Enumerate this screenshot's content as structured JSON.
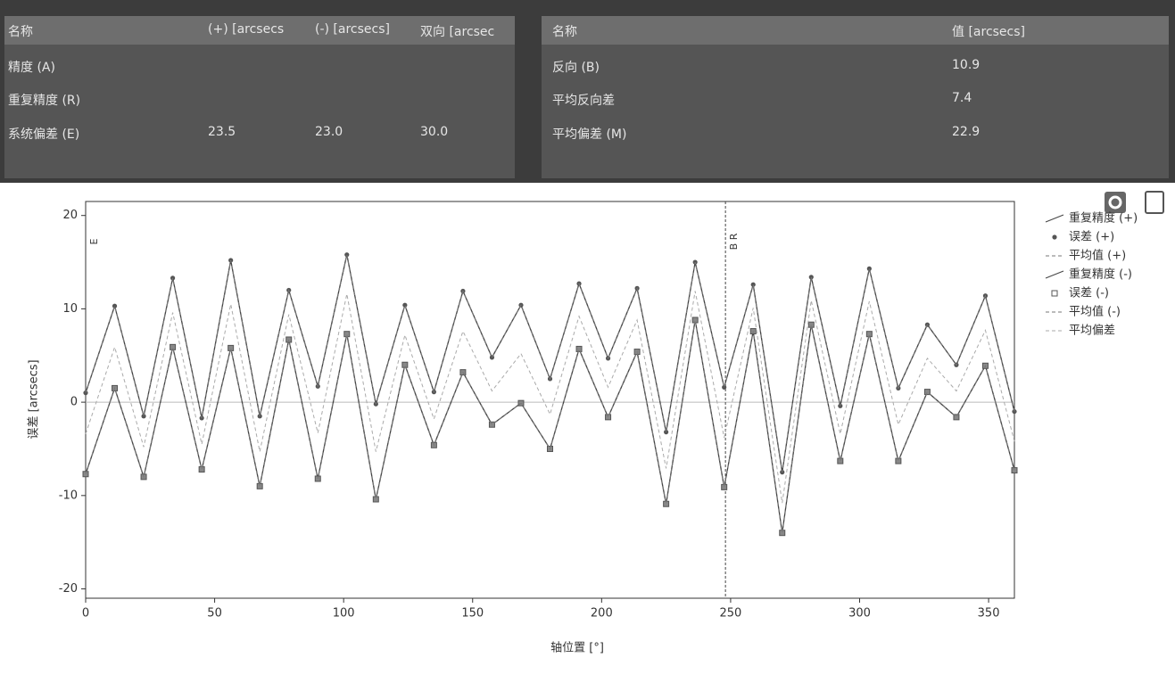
{
  "left_table": {
    "header": [
      "名称",
      "(+) [arcsecs",
      "(-) [arcsecs]",
      "双向 [arcsec"
    ],
    "rows": [
      {
        "name": "精度 (A)"
      },
      {
        "name": "重复精度 (R)"
      },
      {
        "name": "系统偏差 (E)",
        "plus": "23.5",
        "minus": "23.0",
        "bidir": "30.0"
      }
    ]
  },
  "right_table": {
    "header": [
      "名称",
      "值 [arcsecs]"
    ],
    "rows": [
      [
        "反向 (B)",
        "10.9"
      ],
      [
        "平均反向差",
        "7.4"
      ],
      [
        "平均偏差 (M)",
        "22.9"
      ]
    ]
  },
  "chart_data": {
    "type": "line",
    "x_label": "轴位置 [°]",
    "y_label": "误差 [arcsecs]",
    "x": [
      0,
      11.25,
      22.5,
      33.75,
      45,
      56.25,
      67.5,
      78.75,
      90,
      101.25,
      112.5,
      123.75,
      135,
      146.25,
      157.5,
      168.75,
      180,
      191.25,
      202.5,
      213.75,
      225,
      236.25,
      247.5,
      258.75,
      270,
      281.25,
      292.5,
      303.75,
      315,
      326.25,
      337.5,
      348.75,
      360
    ],
    "xlim": [
      0,
      360
    ],
    "xticks": [
      0,
      50,
      100,
      150,
      200,
      250,
      300,
      350
    ],
    "ylim": [
      -21,
      21.5
    ],
    "yticks": [
      -20,
      -10,
      0,
      10,
      20
    ],
    "zero_line": true,
    "annotations": [
      {
        "x": 248,
        "label": "B R"
      },
      {
        "x": 0,
        "label": "E"
      }
    ],
    "series": [
      {
        "name": "重复精度 (+)",
        "color": "#444444",
        "style": "line",
        "values": [
          1.0,
          10.3,
          -1.5,
          13.3,
          -1.7,
          15.2,
          -1.5,
          12.0,
          1.7,
          15.8,
          -0.2,
          10.4,
          1.1,
          11.9,
          4.8,
          10.4,
          2.5,
          12.7,
          4.7,
          12.2,
          -3.2,
          15.0,
          1.6,
          12.6,
          -7.5,
          13.4,
          -0.4,
          14.3,
          1.5,
          8.3,
          4.0,
          11.4,
          -1.0
        ]
      },
      {
        "name": "误差 (+)",
        "color": "#555555",
        "style": "circle",
        "values": [
          1.0,
          10.3,
          -1.5,
          13.3,
          -1.7,
          15.2,
          -1.5,
          12.0,
          1.7,
          15.8,
          -0.2,
          10.4,
          1.1,
          11.9,
          4.8,
          10.4,
          2.5,
          12.7,
          4.7,
          12.2,
          -3.2,
          15.0,
          1.6,
          12.6,
          -7.5,
          13.4,
          -0.4,
          14.3,
          1.5,
          8.3,
          4.0,
          11.4,
          -1.0
        ]
      },
      {
        "name": "平均值 (+)",
        "color": "#777777",
        "style": "dashed",
        "values": [
          1.0,
          10.3,
          -1.5,
          13.3,
          -1.7,
          15.2,
          -1.5,
          12.0,
          1.7,
          15.8,
          -0.2,
          10.4,
          1.1,
          11.9,
          4.8,
          10.4,
          2.5,
          12.7,
          4.7,
          12.2,
          -3.2,
          15.0,
          1.6,
          12.6,
          -7.5,
          13.4,
          -0.4,
          14.3,
          1.5,
          8.3,
          4.0,
          11.4,
          -1.0
        ]
      },
      {
        "name": "重复精度 (-)",
        "color": "#444444",
        "style": "line",
        "values": [
          -7.7,
          1.5,
          -8.0,
          5.9,
          -7.2,
          5.8,
          -9.0,
          6.7,
          -8.2,
          7.3,
          -10.4,
          4.0,
          -4.6,
          3.2,
          -2.4,
          -0.1,
          -5.0,
          5.7,
          -1.6,
          5.4,
          -10.9,
          8.8,
          -9.1,
          7.6,
          -14.0,
          8.3,
          -6.3,
          7.3,
          -6.3,
          1.1,
          -1.6,
          3.9,
          -7.3
        ]
      },
      {
        "name": "误差 (-)",
        "color": "#555555",
        "style": "square",
        "values": [
          -7.7,
          1.5,
          -8.0,
          5.9,
          -7.2,
          5.8,
          -9.0,
          6.7,
          -8.2,
          7.3,
          -10.4,
          4.0,
          -4.6,
          3.2,
          -2.4,
          -0.1,
          -5.0,
          5.7,
          -1.6,
          5.4,
          -10.9,
          8.8,
          -9.1,
          7.6,
          -14.0,
          8.3,
          -6.3,
          7.3,
          -6.3,
          1.1,
          -1.6,
          3.9,
          -7.3
        ]
      },
      {
        "name": "平均值 (-)",
        "color": "#777777",
        "style": "dashed",
        "values": [
          -7.7,
          1.5,
          -8.0,
          5.9,
          -7.2,
          5.8,
          -9.0,
          6.7,
          -8.2,
          7.3,
          -10.4,
          4.0,
          -4.6,
          3.2,
          -2.4,
          -0.1,
          -5.0,
          5.7,
          -1.6,
          5.4,
          -10.9,
          8.8,
          -9.1,
          7.6,
          -14.0,
          8.3,
          -6.3,
          7.3,
          -6.3,
          1.1,
          -1.6,
          3.9,
          -7.3
        ]
      },
      {
        "name": "平均偏差",
        "color": "#aaaaaa",
        "style": "dashed",
        "values": [
          -3.4,
          5.9,
          -4.8,
          9.6,
          -4.5,
          10.5,
          -5.3,
          9.4,
          -3.3,
          11.6,
          -5.3,
          7.2,
          -1.8,
          7.6,
          1.2,
          5.2,
          -1.3,
          9.2,
          1.6,
          8.8,
          -7.1,
          11.9,
          -3.8,
          10.1,
          -10.8,
          10.9,
          -3.4,
          10.8,
          -2.4,
          4.7,
          1.2,
          7.7,
          -4.2
        ]
      }
    ]
  }
}
